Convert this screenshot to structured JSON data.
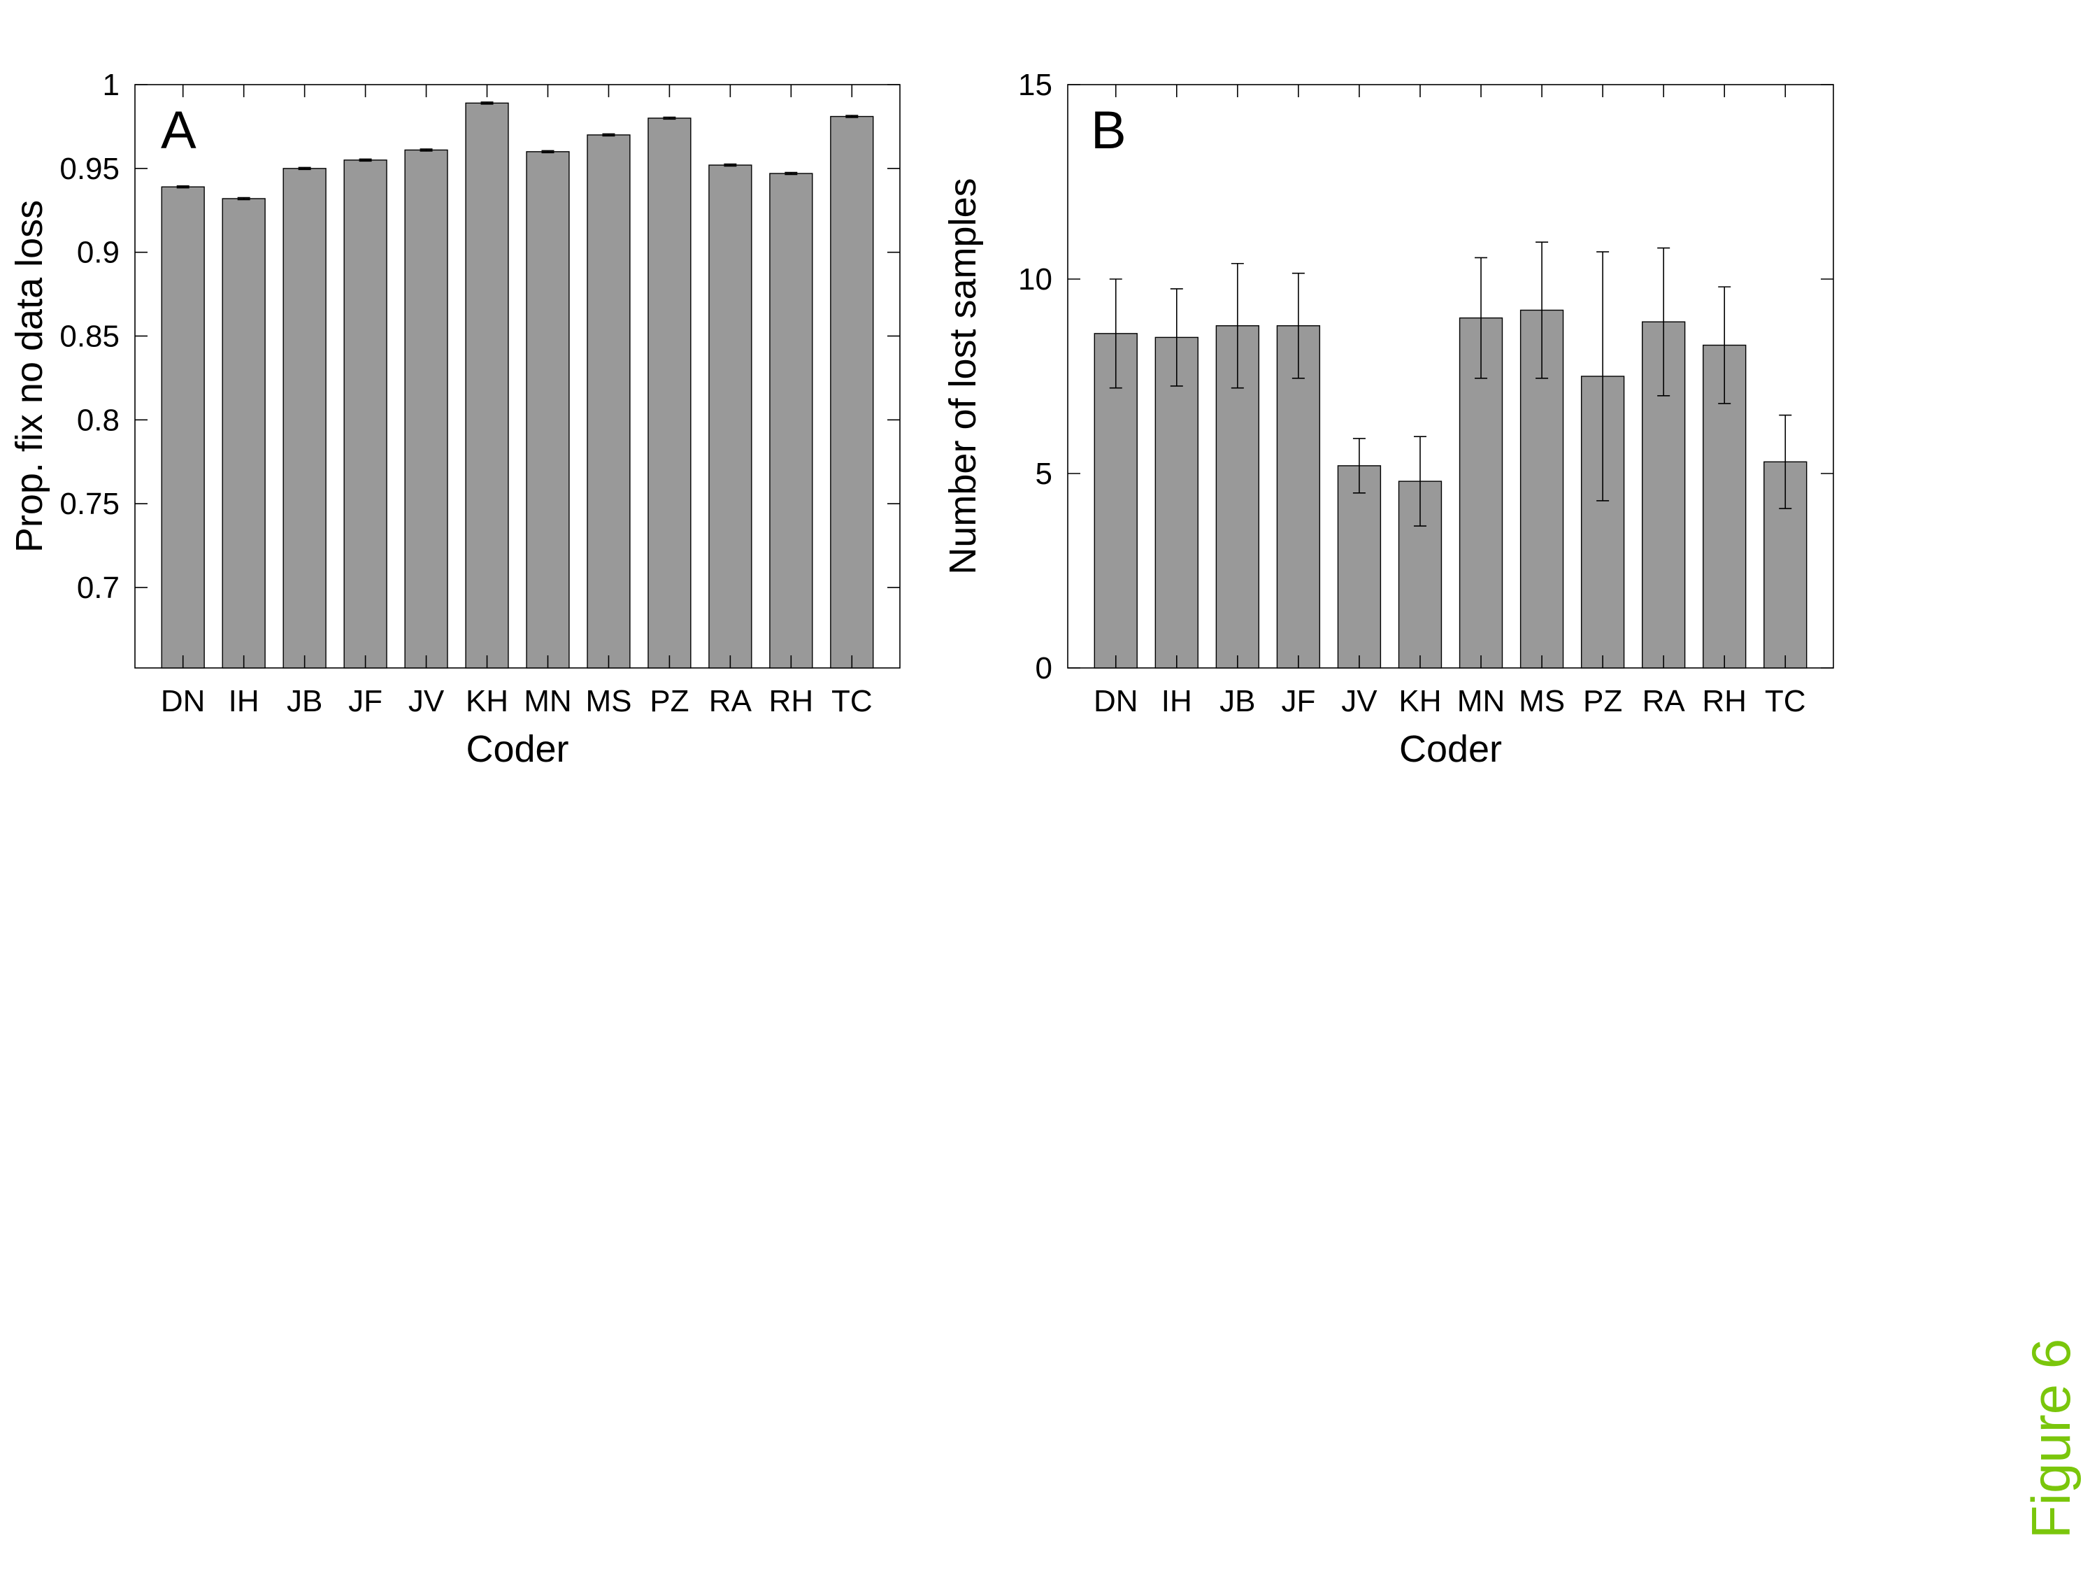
{
  "figure_label": "Figure 6",
  "colors": {
    "bar": "#999999",
    "bar_edge": "#000000",
    "axis": "#000000",
    "figure_label": "#7ac60b"
  },
  "chart_data": [
    {
      "panel": "A",
      "type": "bar",
      "xlabel": "Coder",
      "ylabel": "Prop. fix no data loss",
      "ylim": [
        0.652,
        1.0
      ],
      "yticks": [
        0.7,
        0.75,
        0.8,
        0.85,
        0.9,
        0.95,
        1
      ],
      "ytick_labels": [
        "0.7",
        "0.75",
        "0.8",
        "0.85",
        "0.9",
        "0.95",
        "1"
      ],
      "grid": false,
      "categories": [
        "DN",
        "IH",
        "JB",
        "JF",
        "JV",
        "KH",
        "MN",
        "MS",
        "PZ",
        "RA",
        "RH",
        "TC"
      ],
      "values": [
        0.939,
        0.932,
        0.95,
        0.955,
        0.961,
        0.989,
        0.96,
        0.97,
        0.98,
        0.952,
        0.947,
        0.981
      ],
      "errors": [
        0.0006,
        0.0006,
        0.0006,
        0.0006,
        0.0006,
        0.0006,
        0.0006,
        0.0006,
        0.0006,
        0.0006,
        0.0006,
        0.0006
      ]
    },
    {
      "panel": "B",
      "type": "bar",
      "xlabel": "Coder",
      "ylabel": "Number of lost samples",
      "ylim": [
        0,
        15
      ],
      "yticks": [
        0,
        5,
        10,
        15
      ],
      "ytick_labels": [
        "0",
        "5",
        "10",
        "15"
      ],
      "grid": false,
      "categories": [
        "DN",
        "IH",
        "JB",
        "JF",
        "JV",
        "KH",
        "MN",
        "MS",
        "PZ",
        "RA",
        "RH",
        "TC"
      ],
      "values": [
        8.6,
        8.5,
        8.8,
        8.8,
        5.2,
        4.8,
        9.0,
        9.2,
        7.5,
        8.9,
        8.3,
        5.3
      ],
      "errors": [
        1.4,
        1.25,
        1.6,
        1.35,
        0.7,
        1.15,
        1.55,
        1.75,
        3.2,
        1.9,
        1.5,
        1.2
      ]
    }
  ]
}
